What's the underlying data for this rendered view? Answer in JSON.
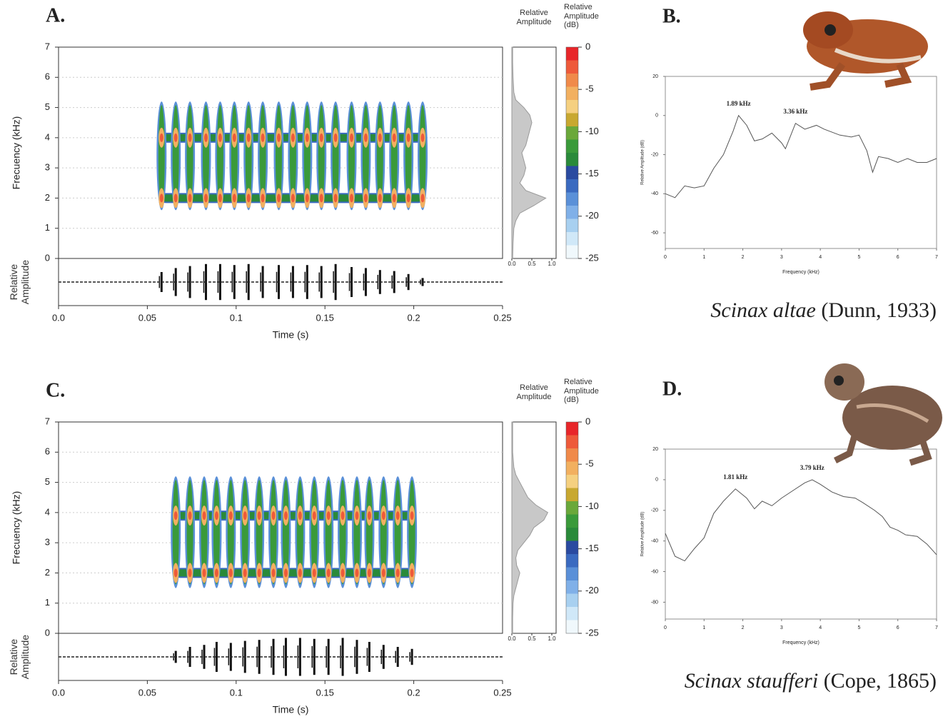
{
  "chart_data": [
    {
      "type": "spectrogram",
      "panel_label": "A.",
      "xlabel": "Time (s)",
      "ylabel": "Frecuency (kHz)",
      "waveform_label": "Relative Amplitude",
      "xlim": [
        0,
        0.25
      ],
      "xticks": [
        {
          "value": 0,
          "label": "0.0"
        },
        0.05,
        0.1,
        0.15,
        0.2,
        0.25
      ],
      "ylim": [
        0,
        7
      ],
      "yticks": [
        0,
        1,
        2,
        3,
        4,
        5,
        6,
        7
      ],
      "grid": true,
      "pulses": {
        "x": [
          0.058,
          0.066,
          0.074,
          0.083,
          0.091,
          0.099,
          0.107,
          0.115,
          0.124,
          0.132,
          0.14,
          0.148,
          0.156,
          0.165,
          0.173,
          0.181,
          0.189,
          0.197,
          0.205
        ],
        "amplitude": [
          0.5,
          0.7,
          0.8,
          0.9,
          0.9,
          0.85,
          0.9,
          0.8,
          0.85,
          0.8,
          0.85,
          0.8,
          0.9,
          0.75,
          0.7,
          0.6,
          0.55,
          0.4,
          0.2
        ],
        "bands": [
          2.0,
          4.0
        ],
        "band_low": 1.6,
        "band_high": 5.2
      },
      "profile": {
        "title": "Relative Amplitude",
        "xlim": [
          0,
          1
        ],
        "xticks": [
          {
            "value": 0,
            "label": "0.0"
          },
          0.5,
          {
            "value": 1,
            "label": "1.0"
          }
        ],
        "y": [
          0,
          0.5,
          1,
          1.25,
          1.5,
          1.75,
          2,
          2.25,
          2.5,
          2.75,
          3,
          3.25,
          3.5,
          3.75,
          4,
          4.25,
          4.5,
          4.75,
          5,
          5.25,
          5.5,
          6,
          6.5,
          7
        ],
        "values": [
          0.02,
          0.03,
          0.05,
          0.1,
          0.2,
          0.55,
          0.85,
          0.35,
          0.2,
          0.3,
          0.35,
          0.3,
          0.25,
          0.35,
          0.4,
          0.45,
          0.5,
          0.45,
          0.3,
          0.1,
          0.05,
          0.03,
          0.02,
          0.02
        ],
        "color": "#c8c8c8"
      },
      "colorbar": {
        "title": "Relative Amplitude (dB)",
        "ylim": [
          -25,
          0
        ],
        "yticks": [
          0,
          -5,
          -10,
          -15,
          -20,
          -25
        ],
        "colors": [
          "#e8262a",
          "#ee5a3a",
          "#f08a4a",
          "#f2b060",
          "#f5d080",
          "#c8a830",
          "#6aa83a",
          "#3a9a3a",
          "#2a8a3a",
          "#2a4aa0",
          "#3a6ac0",
          "#5a90d8",
          "#80b0e8",
          "#a8d0f0",
          "#d0e8f8",
          "#f0f8fc"
        ]
      }
    },
    {
      "type": "line",
      "panel_label": "B.",
      "xlabel": "Frequency (kHz)",
      "ylabel": "Relative Amplitude (dB)",
      "species": "Scinax altae",
      "authority": "(Dunn, 1933)",
      "xlim": [
        0,
        7
      ],
      "xticks": [
        0,
        1,
        2,
        3,
        4,
        5,
        6,
        7
      ],
      "ylim": [
        -68,
        20
      ],
      "yticks": [
        20,
        0,
        -20,
        -40,
        -60
      ],
      "x": [
        0,
        0.25,
        0.5,
        0.75,
        1.0,
        1.25,
        1.5,
        1.75,
        1.89,
        2.1,
        2.3,
        2.5,
        2.75,
        3.0,
        3.1,
        3.36,
        3.6,
        3.9,
        4.1,
        4.5,
        4.8,
        5.0,
        5.2,
        5.35,
        5.5,
        5.75,
        6.0,
        6.25,
        6.5,
        6.75,
        7.0
      ],
      "values": [
        -40,
        -42,
        -36,
        -37,
        -36,
        -27,
        -20,
        -8,
        0,
        -5,
        -13,
        -12,
        -9,
        -14,
        -17,
        -4,
        -7,
        -5,
        -7,
        -10,
        -11,
        -10,
        -18,
        -29,
        -21,
        -22,
        -24,
        -22,
        -24,
        -24,
        -22
      ],
      "color": "#555555",
      "annotation_color": "#e8a050",
      "annotations": [
        {
          "text": "1.89 kHz",
          "x": 1.89,
          "y": 0
        },
        {
          "text": "3.36 kHz",
          "x": 3.36,
          "y": -4
        }
      ]
    },
    {
      "type": "spectrogram",
      "panel_label": "C.",
      "xlabel": "Time (s)",
      "ylabel": "Frecuency (kHz)",
      "waveform_label": "Relative Amplitude",
      "xlim": [
        0,
        0.25
      ],
      "xticks": [
        {
          "value": 0,
          "label": "0.0"
        },
        0.05,
        0.1,
        0.15,
        0.2,
        0.25
      ],
      "ylim": [
        0,
        7
      ],
      "yticks": [
        0,
        1,
        2,
        3,
        4,
        5,
        6,
        7
      ],
      "grid": true,
      "pulses": {
        "x": [
          0.066,
          0.074,
          0.082,
          0.089,
          0.097,
          0.105,
          0.113,
          0.121,
          0.128,
          0.136,
          0.144,
          0.152,
          0.16,
          0.168,
          0.175,
          0.183,
          0.191,
          0.199
        ],
        "amplitude": [
          0.3,
          0.5,
          0.6,
          0.75,
          0.7,
          0.8,
          0.85,
          0.9,
          0.95,
          0.95,
          0.9,
          0.9,
          0.95,
          0.85,
          0.75,
          0.6,
          0.5,
          0.4
        ],
        "bands": [
          2.0,
          3.9
        ],
        "band_low": 1.5,
        "band_high": 5.2
      },
      "profile": {
        "title": "Relative Amplitude",
        "xlim": [
          0,
          1
        ],
        "xticks": [
          {
            "value": 0,
            "label": "0.0"
          },
          0.5,
          {
            "value": 1,
            "label": "1.0"
          }
        ],
        "y": [
          0,
          0.5,
          1,
          1.25,
          1.5,
          1.75,
          2,
          2.25,
          2.5,
          2.75,
          3,
          3.25,
          3.5,
          3.75,
          4,
          4.25,
          4.5,
          4.75,
          5,
          5.25,
          5.5,
          6,
          6.5,
          7
        ],
        "values": [
          0.02,
          0.02,
          0.03,
          0.05,
          0.1,
          0.15,
          0.2,
          0.12,
          0.1,
          0.15,
          0.3,
          0.45,
          0.55,
          0.8,
          0.9,
          0.6,
          0.4,
          0.3,
          0.2,
          0.1,
          0.05,
          0.02,
          0.02,
          0.02
        ],
        "color": "#c8c8c8"
      },
      "colorbar": {
        "title": "Relative Amplitude (dB)",
        "ylim": [
          -25,
          0
        ],
        "yticks": [
          0,
          -5,
          -10,
          -15,
          -20,
          -25
        ],
        "colors": [
          "#e8262a",
          "#ee5a3a",
          "#f08a4a",
          "#f2b060",
          "#f5d080",
          "#c8a830",
          "#6aa83a",
          "#3a9a3a",
          "#2a8a3a",
          "#2a4aa0",
          "#3a6ac0",
          "#5a90d8",
          "#80b0e8",
          "#a8d0f0",
          "#d0e8f8",
          "#f0f8fc"
        ]
      }
    },
    {
      "type": "line",
      "panel_label": "D.",
      "xlabel": "Frequency (kHz)",
      "ylabel": "Relative Amplitude (dB)",
      "species": "Scinax staufferi",
      "authority": "(Cope, 1865)",
      "xlim": [
        0,
        7
      ],
      "xticks": [
        0,
        1,
        2,
        3,
        4,
        5,
        6,
        7
      ],
      "ylim": [
        -91,
        20
      ],
      "yticks": [
        20,
        0,
        -20,
        -40,
        -60,
        -80
      ],
      "x": [
        0,
        0.25,
        0.5,
        0.75,
        1.0,
        1.25,
        1.5,
        1.81,
        2.1,
        2.3,
        2.5,
        2.75,
        3.0,
        3.3,
        3.6,
        3.79,
        4.0,
        4.3,
        4.6,
        4.9,
        5.1,
        5.4,
        5.6,
        5.8,
        6.0,
        6.2,
        6.5,
        6.75,
        7.0
      ],
      "values": [
        -35,
        -50,
        -53,
        -45,
        -38,
        -22,
        -14,
        -6,
        -12,
        -19,
        -14,
        -17,
        -12,
        -7,
        -2,
        0,
        -3,
        -8,
        -11,
        -12,
        -15,
        -20,
        -24,
        -31,
        -33,
        -36,
        -37,
        -42,
        -49
      ],
      "color": "#555555",
      "annotation_color": "#6a4a9a",
      "annotations": [
        {
          "text": "1.81 kHz",
          "x": 1.81,
          "y": -6
        },
        {
          "text": "3.79 kHz",
          "x": 3.79,
          "y": 0
        }
      ]
    }
  ]
}
